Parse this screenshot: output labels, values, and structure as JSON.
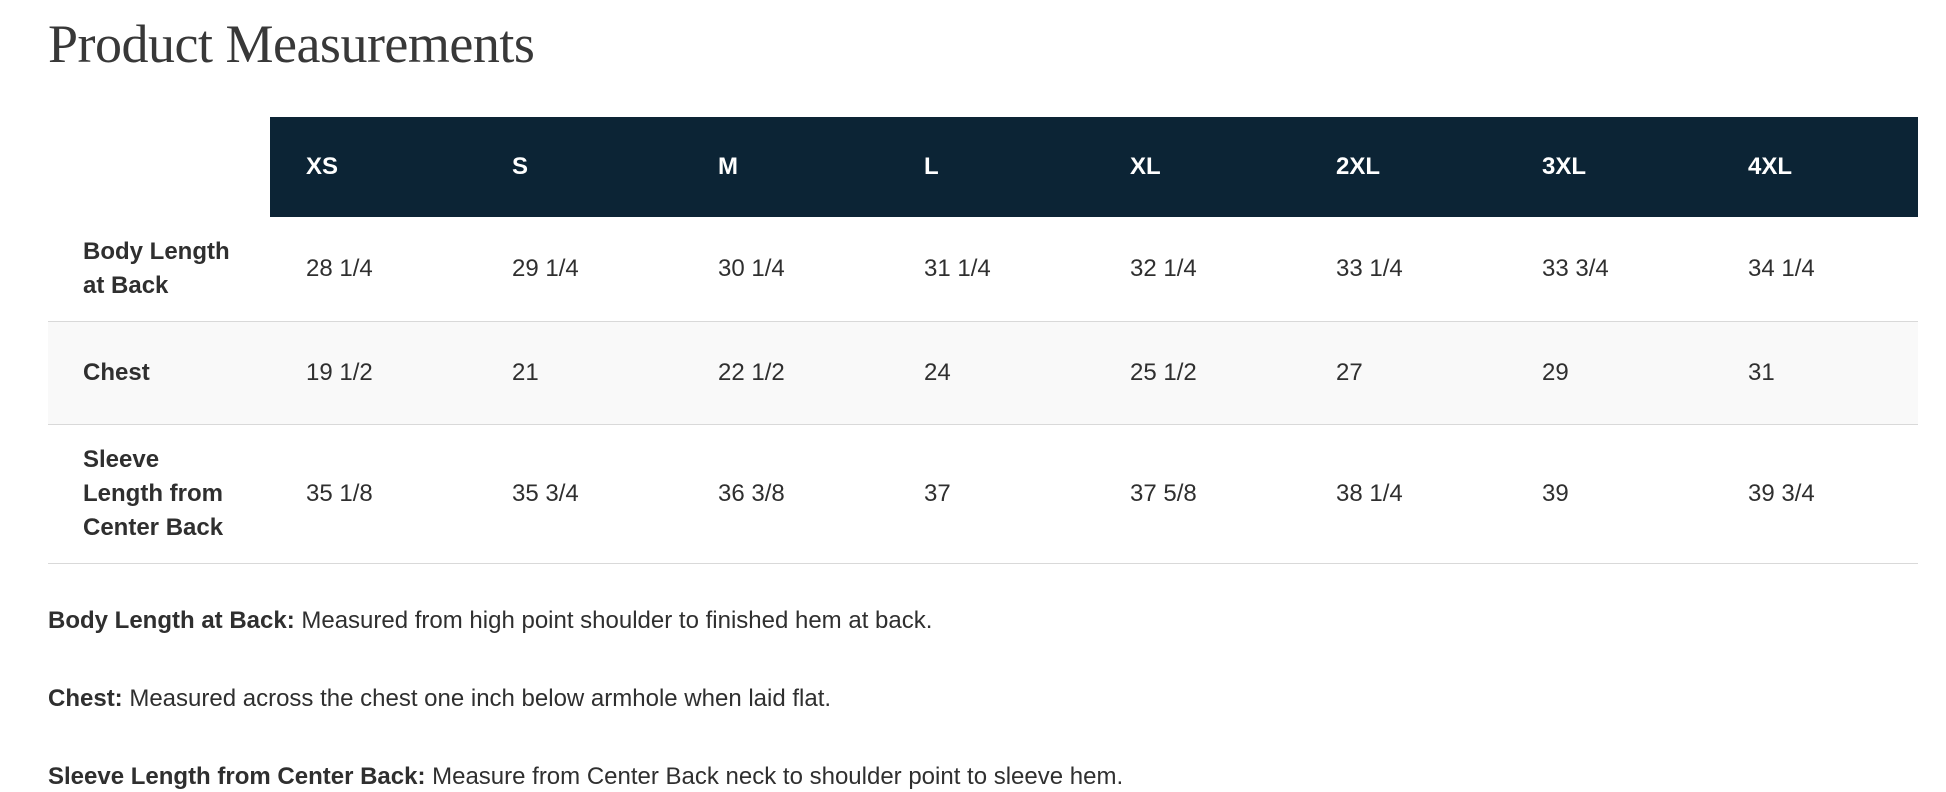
{
  "page": {
    "title": "Product Measurements"
  },
  "table": {
    "sizes": [
      "XS",
      "S",
      "M",
      "L",
      "XL",
      "2XL",
      "3XL",
      "4XL"
    ],
    "rows": [
      {
        "label": "Body Length at Back",
        "values": [
          "28 1/4",
          "29 1/4",
          "30 1/4",
          "31 1/4",
          "32 1/4",
          "33 1/4",
          "33 3/4",
          "34 1/4"
        ]
      },
      {
        "label": "Chest",
        "values": [
          "19 1/2",
          "21",
          "22 1/2",
          "24",
          "25 1/2",
          "27",
          "29",
          "31"
        ]
      },
      {
        "label": "Sleeve Length from Center Back",
        "values": [
          "35 1/8",
          "35 3/4",
          "36 3/8",
          "37",
          "37 5/8",
          "38 1/4",
          "39",
          "39 3/4"
        ]
      }
    ]
  },
  "footnotes": [
    {
      "term": "Body Length at Back:",
      "definition": " Measured from high point shoulder to finished hem at back."
    },
    {
      "term": "Chest:",
      "definition": " Measured across the chest one inch below armhole when laid flat."
    },
    {
      "term": "Sleeve Length from Center Back:",
      "definition": " Measure from Center Back neck to shoulder point to sleeve hem."
    }
  ],
  "colors": {
    "header_bg": "#0c2435",
    "header_text": "#ffffff",
    "body_text": "#2f2f2f",
    "divider": "#d9d9d9",
    "stripe_bg": "#f9f9f9",
    "title_text": "#383838"
  }
}
